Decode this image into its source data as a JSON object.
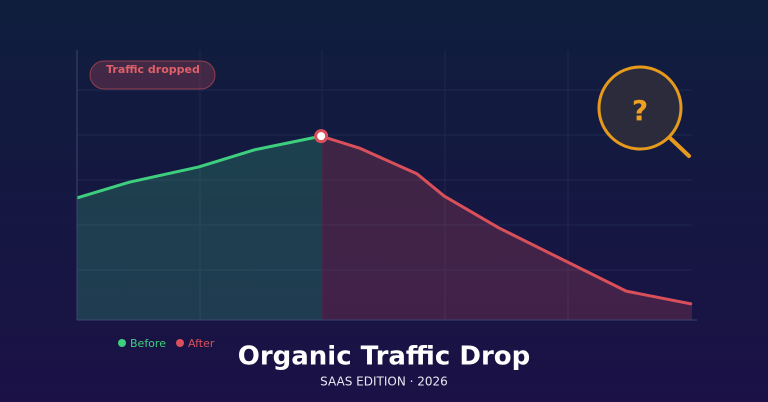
{
  "chart_data": {
    "type": "line",
    "title": "Organic Traffic Drop",
    "subtitle": "SAAS EDITION  ·  2026",
    "annotation": "Traffic dropped",
    "icon_text": "?",
    "xlim": [
      0,
      100
    ],
    "ylim": [
      0,
      100
    ],
    "series": [
      {
        "name": "Before",
        "color": "#3ecf7e",
        "x": [
          0,
          8.6,
          19.8,
          28.8,
          39.7
        ],
        "values": [
          45.2,
          51.1,
          56.7,
          63.0,
          68.1
        ]
      },
      {
        "name": "After",
        "color": "#d9505a",
        "x": [
          39.7,
          45.9,
          55.3,
          59.7,
          68.6,
          78.4,
          89.3,
          100
        ],
        "values": [
          68.1,
          63.7,
          54.1,
          45.9,
          34.1,
          23.0,
          10.7,
          5.9
        ]
      }
    ]
  }
}
